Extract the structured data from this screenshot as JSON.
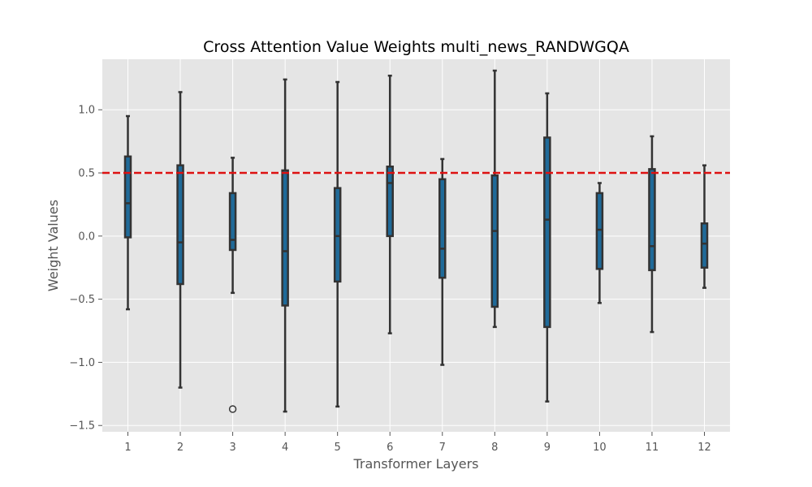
{
  "chart_data": {
    "type": "box",
    "title": "Cross Attention Value Weights multi_news_RANDWGQA",
    "xlabel": "Transformer Layers",
    "ylabel": "Weight Values",
    "ylim": [
      -1.55,
      1.4
    ],
    "yticks": [
      -1.5,
      -1.0,
      -0.5,
      0.0,
      0.5,
      1.0
    ],
    "ytick_labels": [
      "−1.5",
      "−1.0",
      "−0.5",
      "0.0",
      "0.5",
      "1.0"
    ],
    "grid": true,
    "reference_line": {
      "y": 0.5,
      "style": "dashed",
      "color": "#dd1111"
    },
    "box_color": "#1f6a99",
    "edge_color": "#333333",
    "background_color": "#e5e5e5",
    "categories": [
      "1",
      "2",
      "3",
      "4",
      "5",
      "6",
      "7",
      "8",
      "9",
      "10",
      "11",
      "12"
    ],
    "boxes": [
      {
        "whislo": -0.58,
        "q1": -0.01,
        "med": 0.26,
        "q3": 0.63,
        "whishi": 0.95,
        "fliers": []
      },
      {
        "whislo": -1.2,
        "q1": -0.38,
        "med": -0.05,
        "q3": 0.56,
        "whishi": 1.14,
        "fliers": []
      },
      {
        "whislo": -0.45,
        "q1": -0.11,
        "med": -0.03,
        "q3": 0.34,
        "whishi": 0.62,
        "fliers": [
          -1.37
        ]
      },
      {
        "whislo": -1.39,
        "q1": -0.55,
        "med": -0.12,
        "q3": 0.52,
        "whishi": 1.24,
        "fliers": []
      },
      {
        "whislo": -1.35,
        "q1": -0.36,
        "med": 0.0,
        "q3": 0.38,
        "whishi": 1.22,
        "fliers": []
      },
      {
        "whislo": -0.77,
        "q1": 0.0,
        "med": 0.42,
        "q3": 0.55,
        "whishi": 1.27,
        "fliers": []
      },
      {
        "whislo": -1.02,
        "q1": -0.33,
        "med": -0.1,
        "q3": 0.45,
        "whishi": 0.61,
        "fliers": []
      },
      {
        "whislo": -0.72,
        "q1": -0.56,
        "med": 0.04,
        "q3": 0.48,
        "whishi": 1.31,
        "fliers": []
      },
      {
        "whislo": -1.31,
        "q1": -0.72,
        "med": 0.13,
        "q3": 0.78,
        "whishi": 1.13,
        "fliers": []
      },
      {
        "whislo": -0.53,
        "q1": -0.26,
        "med": 0.05,
        "q3": 0.34,
        "whishi": 0.42,
        "fliers": []
      },
      {
        "whislo": -0.76,
        "q1": -0.27,
        "med": -0.08,
        "q3": 0.53,
        "whishi": 0.79,
        "fliers": []
      },
      {
        "whislo": -0.41,
        "q1": -0.25,
        "med": -0.06,
        "q3": 0.1,
        "whishi": 0.56,
        "fliers": []
      }
    ]
  }
}
